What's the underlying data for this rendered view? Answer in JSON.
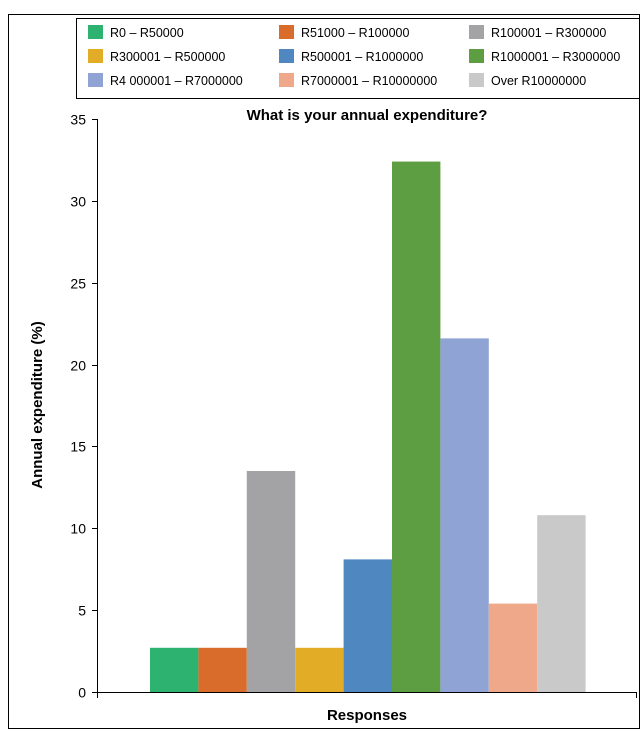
{
  "chart_data": {
    "type": "bar",
    "title": "What is your annual expenditure?",
    "xlabel": "Responses",
    "ylabel": "Annual expenditure (%)",
    "ylim": [
      0,
      35
    ],
    "yticks": [
      0,
      5,
      10,
      15,
      20,
      25,
      30,
      35
    ],
    "grid": false,
    "legend_position": "top",
    "series": [
      {
        "name": "R0 – R50000",
        "value": 2.7,
        "color": "#2db36f"
      },
      {
        "name": "R51000 – R100000",
        "value": 2.7,
        "color": "#d96b2b"
      },
      {
        "name": "R100001 – R300000",
        "value": 13.5,
        "color": "#a3a3a6"
      },
      {
        "name": "R300001 – R500000",
        "value": 2.7,
        "color": "#e2ac26"
      },
      {
        "name": "R500001 – R1000000",
        "value": 8.1,
        "color": "#4f88c0"
      },
      {
        "name": "R1000001 – R3000000",
        "value": 32.4,
        "color": "#5c9e41"
      },
      {
        "name": "R4 000001 – R7000000",
        "value": 21.6,
        "color": "#8fa4d4"
      },
      {
        "name": "R7000001 – R10000000",
        "value": 5.4,
        "color": "#f0a88a"
      },
      {
        "name": "Over R10000000",
        "value": 10.8,
        "color": "#c9c9c9"
      }
    ]
  }
}
